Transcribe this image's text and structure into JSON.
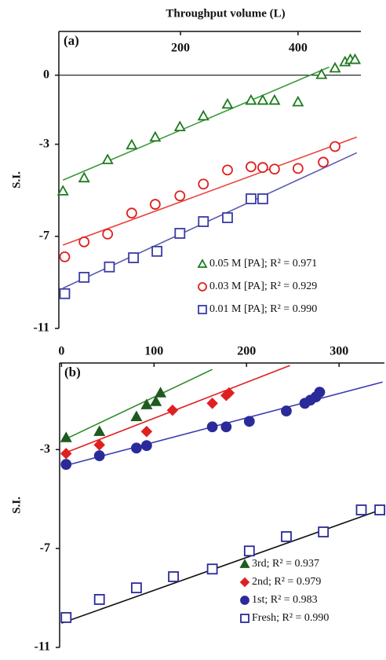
{
  "chart_data": [
    {
      "type": "scatter",
      "panel_label": "(a)",
      "x_label": "Throughput volume (L)",
      "y_label": "S.I.",
      "xlim": [
        -7,
        507
      ],
      "ylim": [
        -11,
        1.9
      ],
      "xticks": [
        200,
        400
      ],
      "yticks": [
        -11,
        -7,
        -3,
        0
      ],
      "zero_line": true,
      "series": [
        {
          "name": "0.05 M [PA]; R² = 0.971",
          "color": "#1e7a1e",
          "line_color": "#3a9a3a",
          "marker": "triangle",
          "filled": false,
          "x": [
            0,
            36,
            76,
            117,
            157,
            199,
            239,
            280,
            320,
            340,
            360,
            400,
            440,
            463,
            480,
            489,
            497
          ],
          "values": [
            -5.03,
            -4.46,
            -3.67,
            -3.03,
            -2.69,
            -2.24,
            -1.77,
            -1.26,
            -1.09,
            -1.09,
            -1.09,
            -1.16,
            0.03,
            0.31,
            0.58,
            0.68,
            0.68
          ],
          "fit": {
            "x": [
              0,
              453
            ],
            "values": [
              -4.56,
              0.35
            ]
          }
        },
        {
          "name": "0.03 M [PA]; R² = 0.929",
          "color": "#e02020",
          "line_color": "#e8423a",
          "marker": "circle",
          "filled": false,
          "x": [
            3,
            36,
            76,
            117,
            157,
            199,
            239,
            280,
            320,
            340,
            360,
            400,
            443,
            463
          ],
          "values": [
            -7.89,
            -7.24,
            -6.9,
            -5.99,
            -5.61,
            -5.24,
            -4.73,
            -4.12,
            -3.98,
            -4.01,
            -4.08,
            -4.05,
            -3.78,
            -3.1
          ],
          "fit": {
            "x": [
              0,
              500
            ],
            "values": [
              -7.38,
              -2.69
            ]
          }
        },
        {
          "name": "0.01 M [PA]; R² = 0.990",
          "color": "#3a3aa8",
          "line_color": "#5a5ab0",
          "marker": "square",
          "filled": false,
          "x": [
            3,
            36,
            79,
            120,
            160,
            199,
            239,
            280,
            320,
            340
          ],
          "values": [
            -9.49,
            -8.78,
            -8.33,
            -7.93,
            -7.65,
            -6.87,
            -6.36,
            -6.19,
            -5.37,
            -5.37
          ],
          "fit": {
            "x": [
              0,
              500
            ],
            "values": [
              -9.25,
              -3.37
            ]
          }
        }
      ]
    },
    {
      "type": "scatter",
      "panel_label": "(b)",
      "y_label": "S.I.",
      "xlim": [
        -2,
        349
      ],
      "ylim": [
        -11,
        0.5
      ],
      "xticks": [
        0,
        100,
        200,
        300
      ],
      "yticks": [
        -11,
        -7,
        -3
      ],
      "series": [
        {
          "name": "3rd; R² = 0.937",
          "color": "#1f5a1f",
          "line_color": "#2e8b2e",
          "marker": "triangle",
          "filled": true,
          "x": [
            5,
            41,
            81,
            92,
            102,
            107
          ],
          "values": [
            -2.52,
            -2.27,
            -1.67,
            -1.19,
            -1.06,
            -0.71
          ],
          "fit": {
            "x": [
              2,
              163
            ],
            "values": [
              -2.62,
              0.24
            ]
          }
        },
        {
          "name": "2nd; R² = 0.979",
          "color": "#e02020",
          "line_color": "#e02020",
          "marker": "diamond",
          "filled": true,
          "x": [
            5,
            41,
            92,
            120,
            163,
            178,
            181
          ],
          "values": [
            -3.16,
            -2.81,
            -2.27,
            -1.41,
            -1.13,
            -0.81,
            -0.71
          ],
          "fit": {
            "x": [
              2,
              247
            ],
            "values": [
              -3.16,
              0.4
            ]
          }
        },
        {
          "name": "1st; R² = 0.983",
          "color": "#2a2a9a",
          "line_color": "#3a3ab0",
          "marker": "circle",
          "filled": true,
          "x": [
            5,
            41,
            81,
            92,
            163,
            178,
            203,
            243,
            263,
            269,
            275,
            279
          ],
          "values": [
            -3.6,
            -3.25,
            -2.94,
            -2.84,
            -2.08,
            -2.08,
            -1.86,
            -1.44,
            -1.13,
            -1.0,
            -0.87,
            -0.68
          ],
          "fit": {
            "x": [
              2,
              347
            ],
            "values": [
              -3.67,
              -0.27
            ]
          }
        },
        {
          "name": "Fresh; R² = 0.990",
          "color": "#2a2a9a",
          "line_color": "#111111",
          "marker": "square",
          "filled": false,
          "x": [
            5,
            41,
            81,
            121,
            163,
            203,
            243,
            283,
            324,
            344
          ],
          "values": [
            -9.79,
            -9.06,
            -8.59,
            -8.14,
            -7.83,
            -7.1,
            -6.52,
            -6.33,
            -5.44,
            -5.44
          ],
          "fit": {
            "x": [
              0,
              347
            ],
            "values": [
              -10.02,
              -5.41
            ]
          }
        }
      ]
    }
  ]
}
